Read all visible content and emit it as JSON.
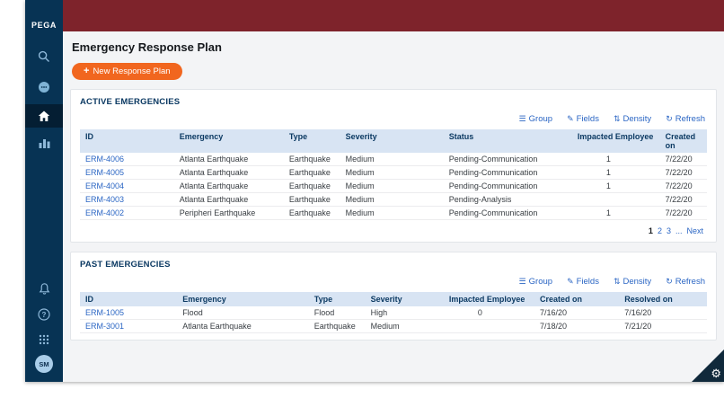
{
  "sidebar": {
    "logo": "PEGA",
    "icons": [
      "search-icon",
      "chat-icon",
      "home-icon",
      "chart-icon",
      "bell-icon",
      "help-icon",
      "apps-grid-icon"
    ],
    "avatar_initials": "SM"
  },
  "page": {
    "title": "Emergency Response Plan",
    "new_button_label": "New Response Plan",
    "new_button_plus": "+"
  },
  "toolbar": {
    "items": [
      {
        "icon": "group-icon",
        "label": "Group"
      },
      {
        "icon": "fields-icon",
        "label": "Fields"
      },
      {
        "icon": "density-icon",
        "label": "Density"
      },
      {
        "icon": "refresh-icon",
        "label": "Refresh"
      }
    ]
  },
  "active": {
    "heading": "ACTIVE EMERGENCIES",
    "columns": [
      "ID",
      "Emergency",
      "Type",
      "Severity",
      "Status",
      "Impacted Employee",
      "Created on"
    ],
    "rows": [
      [
        "ERM-4006",
        "Atlanta Earthquake",
        "Earthquake",
        "Medium",
        "Pending-Communication",
        "1",
        "7/22/20"
      ],
      [
        "ERM-4005",
        "Atlanta Earthquake",
        "Earthquake",
        "Medium",
        "Pending-Communication",
        "1",
        "7/22/20"
      ],
      [
        "ERM-4004",
        "Atlanta Earthquake",
        "Earthquake",
        "Medium",
        "Pending-Communication",
        "1",
        "7/22/20"
      ],
      [
        "ERM-4003",
        "Atlanta Earthquake",
        "Earthquake",
        "Medium",
        "Pending-Analysis",
        "",
        "7/22/20"
      ],
      [
        "ERM-4002",
        "Peripheri Earthquake",
        "Earthquake",
        "Medium",
        "Pending-Communication",
        "1",
        "7/22/20"
      ]
    ],
    "pagination": {
      "items": [
        {
          "label": "1",
          "current": true
        },
        {
          "label": "2"
        },
        {
          "label": "3"
        },
        {
          "label": "..."
        },
        {
          "label": "Next"
        }
      ]
    }
  },
  "past": {
    "heading": "PAST EMERGENCIES",
    "columns": [
      "ID",
      "Emergency",
      "Type",
      "Severity",
      "Impacted Employee",
      "Created on",
      "Resolved on"
    ],
    "rows": [
      [
        "ERM-1005",
        "Flood",
        "Flood",
        "High",
        "0",
        "7/16/20",
        "7/16/20"
      ],
      [
        "ERM-3001",
        "Atlanta Earthquake",
        "Earthquake",
        "Medium",
        "",
        "7/18/20",
        "7/21/20"
      ]
    ]
  }
}
